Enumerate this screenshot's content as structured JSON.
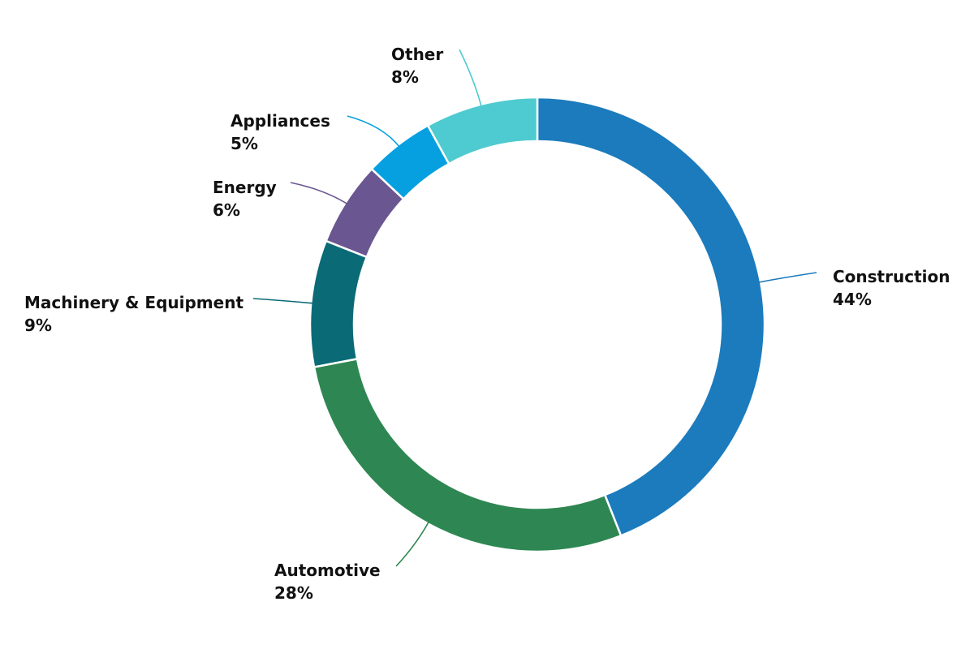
{
  "chart_data": {
    "type": "pie",
    "style": "donut",
    "title": "",
    "slices": [
      {
        "label": "Construction",
        "value": 44,
        "value_label": "44%",
        "color": "#1b7bbd"
      },
      {
        "label": "Automotive",
        "value": 28,
        "value_label": "28%",
        "color": "#2e8752"
      },
      {
        "label": "Machinery & Equipment",
        "value": 9,
        "value_label": "9%",
        "color": "#0a6b77"
      },
      {
        "label": "Energy",
        "value": 6,
        "value_label": "6%",
        "color": "#6a5690"
      },
      {
        "label": "Appliances",
        "value": 5,
        "value_label": "5%",
        "color": "#06a0e0"
      },
      {
        "label": "Other",
        "value": 8,
        "value_label": "8%",
        "color": "#4ecbd0"
      }
    ]
  }
}
